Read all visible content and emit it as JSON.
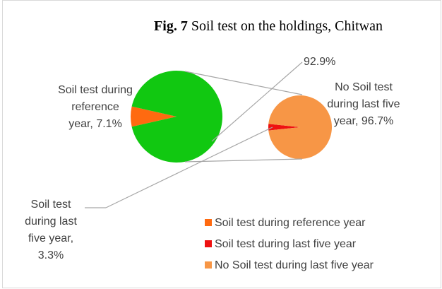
{
  "chart_data": {
    "type": "pie_of_pie",
    "title_bold": "Fig. 7",
    "title": "Soil test on the holdings, Chitwan",
    "pie": {
      "values": [
        7.1,
        92.9
      ],
      "labels": [
        "Soil test during reference year",
        null
      ],
      "value_labels": [
        "Soil test during reference year, 7.1%",
        "92.9%"
      ],
      "colors": [
        "#ff6a10",
        "#11c811"
      ]
    },
    "secondary": {
      "values": [
        3.3,
        96.7
      ],
      "labels": [
        "Soil test during last five year",
        "No Soil test during last five year"
      ],
      "value_labels": [
        "Soil test during last five year, 3.3%",
        "No Soil test during last five year, 96.7%"
      ],
      "colors": [
        "#ee1111",
        "#f79646"
      ]
    }
  }
}
